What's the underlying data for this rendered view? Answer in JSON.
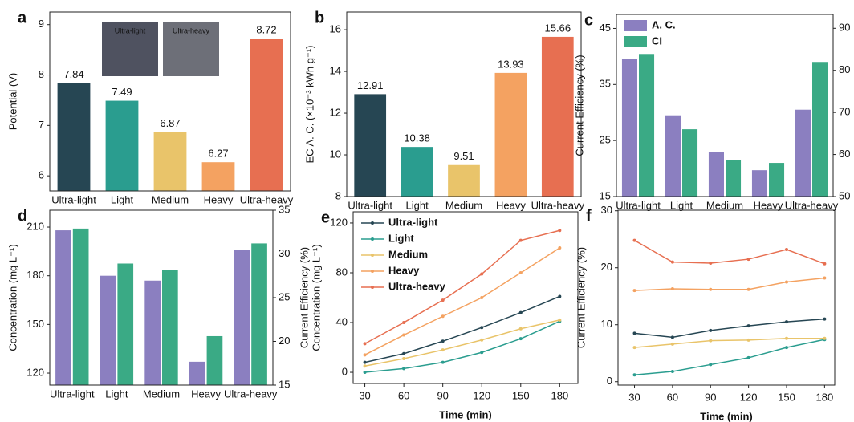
{
  "chart_data": [
    {
      "type": "bar",
      "label": "a",
      "ylabel": "Potential (V)",
      "categories": [
        "Ultra-light",
        "Light",
        "Medium",
        "Heavy",
        "Ultra-heavy"
      ],
      "values": [
        7.84,
        7.49,
        6.87,
        6.27,
        8.72
      ],
      "colors": [
        "#264653",
        "#2a9d8f",
        "#e9c46a",
        "#f4a261",
        "#e76f51"
      ],
      "ylim": [
        5.7,
        9.25
      ],
      "yticks": [
        6,
        7,
        8,
        9
      ],
      "annotations": [
        "Ultra-light",
        "Ultra-heavy"
      ]
    },
    {
      "type": "bar",
      "label": "b",
      "ylabel": "EC A. C. (×10⁻³ kWh g⁻¹)",
      "categories": [
        "Ultra-light",
        "Light",
        "Medium",
        "Heavy",
        "Ultra-heavy"
      ],
      "values": [
        12.91,
        10.38,
        9.51,
        13.93,
        15.66
      ],
      "colors": [
        "#264653",
        "#2a9d8f",
        "#e9c46a",
        "#f4a261",
        "#e76f51"
      ],
      "ylim": [
        8,
        16.85
      ],
      "yticks": [
        8,
        10,
        12,
        14,
        16
      ]
    },
    {
      "type": "bar",
      "label": "c",
      "ylabel": "Current Efficiency (%)",
      "categories": [
        "Ultra-light",
        "Light",
        "Medium",
        "Heavy",
        "Ultra-heavy"
      ],
      "series": [
        {
          "name": "A. C.",
          "color": "#8b7fc0",
          "values": [
            39.5,
            29.5,
            23,
            19.7,
            30.5
          ]
        },
        {
          "name": "CI",
          "color": "#3aaa85",
          "axis": "y2",
          "values": [
            83.9,
            66,
            58.7,
            58,
            82
          ]
        }
      ],
      "ylim": [
        15,
        47.5
      ],
      "yticks": [
        15,
        25,
        35,
        45
      ],
      "y2lim": [
        50,
        93.3
      ],
      "y2ticks": [
        50,
        60,
        70,
        80,
        90
      ],
      "legend": "upper left"
    },
    {
      "type": "bar",
      "label": "d",
      "ylabel": "Concentration (mg L⁻¹)",
      "categories": [
        "Ultra-light",
        "Light",
        "Medium",
        "Heavy",
        "Ultra-heavy"
      ],
      "series": [
        {
          "color": "#8b7fc0",
          "values": [
            208,
            180,
            177,
            127,
            196
          ]
        },
        {
          "color": "#3aaa85",
          "axis": "y2",
          "values": [
            32.9,
            28.9,
            28.2,
            20.6,
            31.2
          ]
        }
      ],
      "ylim": [
        112.6,
        220.4
      ],
      "yticks": [
        120,
        150,
        180,
        210
      ],
      "y2lim": [
        15,
        35
      ],
      "y2ticks": [
        15,
        20,
        25,
        30,
        35
      ]
    },
    {
      "type": "line",
      "label": "e",
      "ylabel": [
        "Current Efficiency (%)",
        "Concentration (mg L⁻¹)"
      ],
      "xlabel": "Time (min)",
      "x": [
        30,
        60,
        90,
        120,
        150,
        180
      ],
      "series": [
        {
          "name": "Ultra-light",
          "color": "#264653",
          "values": [
            8,
            15,
            25,
            36,
            48,
            61
          ]
        },
        {
          "name": "Light",
          "color": "#2a9d8f",
          "values": [
            0,
            3,
            8,
            16,
            27,
            41
          ]
        },
        {
          "name": "Medium",
          "color": "#e9c46a",
          "values": [
            5,
            11,
            18,
            26,
            35,
            42
          ]
        },
        {
          "name": "Heavy",
          "color": "#f4a261",
          "values": [
            14,
            30,
            45,
            60,
            80,
            100
          ]
        },
        {
          "name": "Ultra-heavy",
          "color": "#e76f51",
          "values": [
            23,
            40,
            58,
            79,
            106,
            114
          ]
        }
      ],
      "xlim": [
        21,
        194
      ],
      "xticks": [
        30,
        60,
        90,
        120,
        150,
        180
      ],
      "ylim": [
        -9,
        129
      ],
      "yticks": [
        0,
        40,
        80,
        120
      ],
      "legend": "upper left"
    },
    {
      "type": "line",
      "label": "f",
      "ylabel": "Current Efficiency (%)",
      "xlabel": "Time (min)",
      "x": [
        30,
        60,
        90,
        120,
        150,
        180
      ],
      "series": [
        {
          "color": "#264653",
          "values": [
            8.5,
            7.8,
            9,
            9.8,
            10.5,
            11
          ]
        },
        {
          "color": "#2a9d8f",
          "values": [
            1.2,
            1.8,
            3,
            4.2,
            6,
            7.4
          ]
        },
        {
          "color": "#e9c46a",
          "values": [
            6,
            6.6,
            7.2,
            7.3,
            7.6,
            7.6
          ]
        },
        {
          "color": "#f4a261",
          "values": [
            16,
            16.3,
            16.2,
            16.2,
            17.5,
            18.2
          ]
        },
        {
          "color": "#e76f51",
          "values": [
            24.8,
            21,
            20.8,
            21.5,
            23.2,
            20.7
          ]
        }
      ],
      "xlim": [
        17,
        188
      ],
      "xticks": [
        30,
        60,
        90,
        120,
        150,
        180
      ],
      "ylim": [
        -0.6,
        30.1
      ],
      "yticks": [
        0,
        10,
        20,
        30
      ]
    }
  ]
}
